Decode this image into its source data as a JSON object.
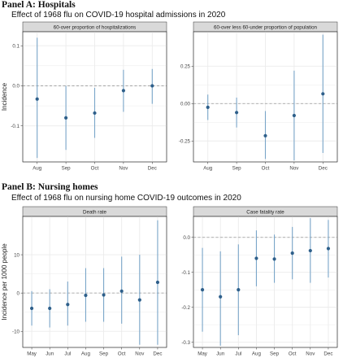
{
  "panel_a": {
    "heading": "Panel A: Hospitals",
    "title": "Effect of 1968 flu on COVID-19 hospital admissions in 2020"
  },
  "panel_b": {
    "heading": "Panel B: Nursing homes",
    "title": "Effect of 1968 flu on nursing home COVID-19 outcomes in 2020"
  },
  "colors": {
    "point": "#2e5f8a",
    "ci": "#7aa6c9",
    "strip": "#d9d9d9",
    "grid": "#ebebeb",
    "zero_line": "#9a9a9a"
  },
  "chart_data": [
    {
      "type": "scatter",
      "facet": "60-over proportion of hospitalizations",
      "ylabel": "Incidence",
      "categories": [
        "Aug",
        "Sep",
        "Oct",
        "Nov",
        "Dec"
      ],
      "values": [
        -0.033,
        -0.08,
        -0.068,
        -0.012,
        0.0
      ],
      "ci_low": [
        -0.18,
        -0.16,
        -0.13,
        -0.065,
        -0.045
      ],
      "ci_high": [
        0.12,
        0.0,
        -0.005,
        0.04,
        0.042
      ],
      "ylim": [
        -0.19,
        0.135
      ],
      "yticks": [
        0.1,
        0.0,
        -0.1
      ],
      "ytick_labels": [
        "0.1",
        "0.0",
        "-0.1"
      ],
      "zero_line": true,
      "grid": true
    },
    {
      "type": "scatter",
      "facet": "60-over less 60-under proportion of population",
      "ylabel": "",
      "categories": [
        "Aug",
        "Sep",
        "Oct",
        "Nov",
        "Dec"
      ],
      "values": [
        -0.025,
        -0.06,
        -0.215,
        -0.08,
        0.065
      ],
      "ci_low": [
        -0.11,
        -0.16,
        -0.37,
        -0.38,
        -0.33
      ],
      "ci_high": [
        0.06,
        0.04,
        -0.05,
        0.22,
        0.46
      ],
      "ylim": [
        -0.39,
        0.48
      ],
      "yticks": [
        0.25,
        0.0,
        -0.25
      ],
      "ytick_labels": [
        "0.25",
        "0.00",
        "-0.25"
      ],
      "zero_line": true,
      "grid": true
    },
    {
      "type": "scatter",
      "facet": "Death rate",
      "ylabel": "Incidence per 1000 people",
      "categories": [
        "May",
        "Jun",
        "Jul",
        "Aug",
        "Sep",
        "Oct",
        "Nov",
        "Dec"
      ],
      "values": [
        -4.0,
        -4.0,
        -3.0,
        -0.6,
        -0.5,
        0.5,
        -1.8,
        2.8
      ],
      "ci_low": [
        -8.5,
        -9.0,
        -8.5,
        -7.5,
        -7.5,
        -8.0,
        -13.5,
        -13.5
      ],
      "ci_high": [
        0.5,
        1.0,
        3.0,
        6.5,
        6.5,
        9.5,
        10.0,
        19.0
      ],
      "ylim": [
        -14.2,
        20.0
      ],
      "yticks": [
        10,
        0,
        -10
      ],
      "ytick_labels": [
        "10",
        "0",
        "-10"
      ],
      "zero_line": true,
      "grid": true
    },
    {
      "type": "scatter",
      "facet": "Case fatality rate",
      "ylabel": "",
      "categories": [
        "May",
        "Jun",
        "Jul",
        "Aug",
        "Sep",
        "Oct",
        "Nov",
        "Dec"
      ],
      "values": [
        -0.15,
        -0.17,
        -0.15,
        -0.06,
        -0.062,
        -0.045,
        -0.038,
        -0.032
      ],
      "ci_low": [
        -0.27,
        -0.31,
        -0.28,
        -0.14,
        -0.13,
        -0.12,
        -0.13,
        -0.115
      ],
      "ci_high": [
        -0.03,
        -0.04,
        -0.02,
        0.02,
        0.008,
        0.03,
        0.055,
        0.05
      ],
      "ylim": [
        -0.315,
        0.06
      ],
      "yticks": [
        0.0,
        -0.1,
        -0.2,
        -0.3
      ],
      "ytick_labels": [
        "0.0",
        "-0.1",
        "-0.2",
        "-0.3"
      ],
      "zero_line": true,
      "grid": true
    }
  ]
}
